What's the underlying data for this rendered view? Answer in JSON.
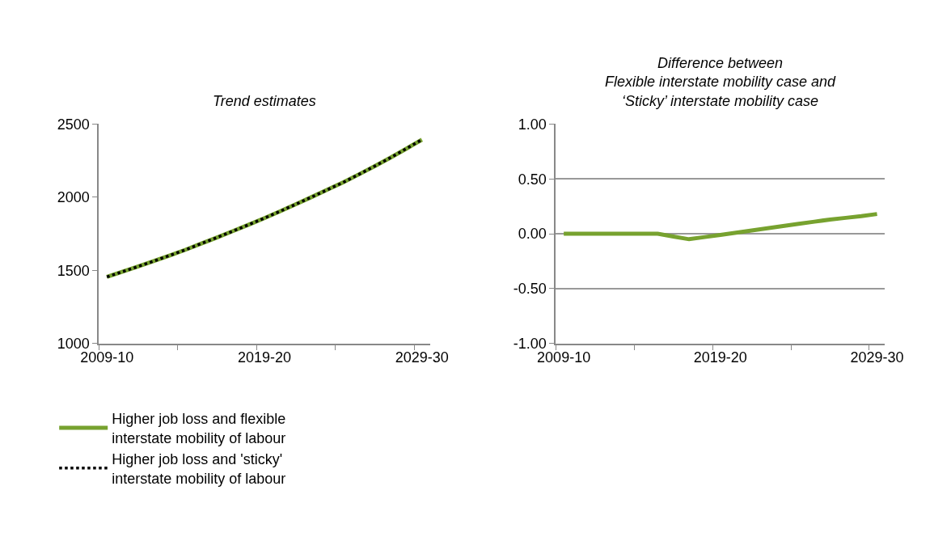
{
  "chart_data": [
    {
      "type": "line",
      "title": "Trend estimates",
      "categories": [
        "2009-10",
        null,
        null,
        null,
        null,
        null,
        null,
        null,
        null,
        null,
        "2019-20",
        null,
        null,
        null,
        null,
        null,
        null,
        null,
        null,
        null,
        "2029-30"
      ],
      "series": [
        {
          "name": "Higher job loss and flexible interstate mobility of labour",
          "color": "#77a22f",
          "line_style": "solid",
          "values": [
            1455,
            1491,
            1527,
            1564,
            1602,
            1641,
            1683,
            1725,
            1768,
            1812,
            1857,
            1904,
            1952,
            2001,
            2051,
            2101,
            2156,
            2212,
            2270,
            2331,
            2393
          ]
        },
        {
          "name": "Higher job loss and 'sticky' interstate mobility of labour",
          "color": "#000000",
          "line_style": "dotted",
          "values": [
            1455,
            1491,
            1527,
            1564,
            1602,
            1641,
            1683,
            1725,
            1768,
            1812,
            1857,
            1904,
            1952,
            2001,
            2051,
            2101,
            2156,
            2212,
            2270,
            2331,
            2393
          ]
        }
      ],
      "ylim": [
        1000,
        2500
      ],
      "yticks": [
        1000,
        1500,
        2000,
        2500
      ],
      "grid": false,
      "legend": "bottom left"
    },
    {
      "type": "line",
      "title": "Difference between\nFlexible interstate mobility case and\n‘Sticky’ interstate mobility case",
      "categories": [
        "2009-10",
        null,
        null,
        null,
        null,
        null,
        null,
        null,
        null,
        null,
        "2019-20",
        null,
        null,
        null,
        null,
        null,
        null,
        null,
        null,
        null,
        "2029-30"
      ],
      "series": [
        {
          "color": "#77a22f",
          "line_style": "solid",
          "values": [
            0,
            0,
            0,
            0,
            0,
            0,
            0,
            -0.025,
            -0.05,
            -0.03,
            -0.01,
            0.01,
            0.03,
            0.05,
            0.07,
            0.09,
            0.11,
            0.13,
            0.145,
            0.16,
            0.18
          ]
        }
      ],
      "ylim": [
        -1,
        1
      ],
      "yticks": [
        {
          "value": -1,
          "label": "-1.00"
        },
        {
          "value": -0.5,
          "label": "-0.50"
        },
        {
          "value": 0,
          "label": "0.00"
        },
        {
          "value": 0.5,
          "label": "0.50"
        },
        {
          "value": 1,
          "label": "1.00"
        }
      ],
      "grid": "y",
      "legend": false
    }
  ]
}
